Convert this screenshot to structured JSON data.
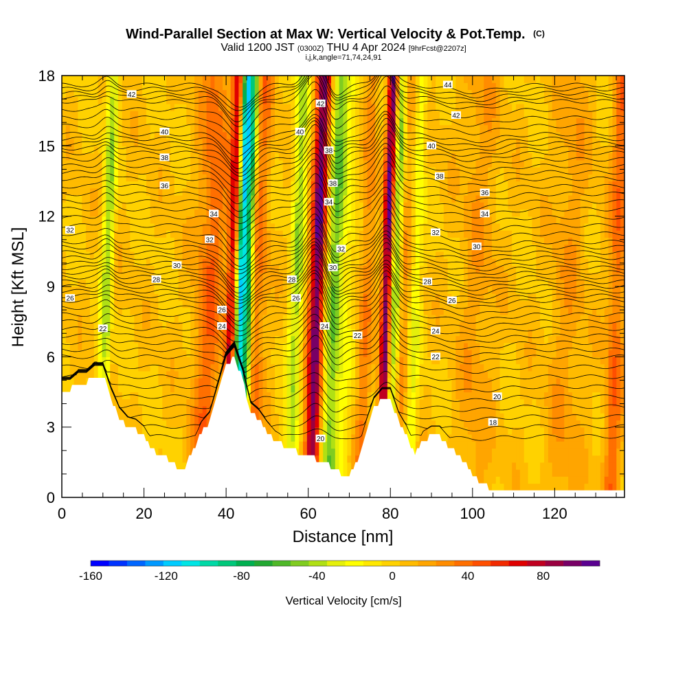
{
  "header": {
    "title": "Wind-Parallel Section at Max W: Vertical Velocity & Pot.Temp.",
    "title_mark": "(C)",
    "valid_prefix": "Valid 1200 JST",
    "valid_utc": "(0300Z)",
    "valid_date": "THU 4 Apr 2024",
    "forecast": "[9hrFcst@2207z]",
    "params": "i,j,k,angle=71,74,24,91"
  },
  "chart_data": {
    "type": "heatmap",
    "title": "Wind-Parallel Section at Max W: Vertical Velocity & Pot.Temp.",
    "xlabel": "Distance [nm]",
    "ylabel": "Height [Kft MSL]",
    "xlim": [
      0,
      137
    ],
    "ylim": [
      0,
      18
    ],
    "x_ticks": [
      0,
      20,
      40,
      60,
      80,
      100,
      120
    ],
    "y_ticks": [
      0,
      3,
      6,
      9,
      12,
      15,
      18
    ],
    "x_tick_labels": [
      "0",
      "20",
      "40",
      "60",
      "80",
      "100",
      "120"
    ],
    "y_tick_labels": [
      "0",
      "3",
      "6",
      "9",
      "12",
      "15",
      "18"
    ],
    "colorbar": {
      "label": "Vertical Velocity [cm/s]",
      "range": [
        -160,
        110
      ],
      "tick_values": [
        -160,
        -120,
        -80,
        -40,
        0,
        40,
        80
      ],
      "tick_labels": [
        "-160",
        "-120",
        "-80",
        "-40",
        "0",
        "40",
        "80"
      ],
      "colors": [
        "#0000ff",
        "#0033ff",
        "#0066ff",
        "#0099ff",
        "#00ccff",
        "#00e5e5",
        "#00d9a6",
        "#00c87a",
        "#00b050",
        "#22a832",
        "#4fb828",
        "#80cc20",
        "#b0e014",
        "#e5f00a",
        "#ffff00",
        "#ffe800",
        "#ffd200",
        "#ffbb00",
        "#ffa500",
        "#ff8c00",
        "#ff6f00",
        "#ff4f00",
        "#f22a00",
        "#e00000",
        "#c00020",
        "#9a0040",
        "#780066",
        "#5a0090"
      ]
    },
    "background_w": 5,
    "w_features": [
      {
        "x": 10.5,
        "w": -40,
        "sigma": 0.9
      },
      {
        "x": 11.5,
        "w": -15,
        "sigma": 0.6
      },
      {
        "x": 36,
        "w": 35,
        "sigma": 2.5
      },
      {
        "x": 41.5,
        "w": 80,
        "sigma": 1.0
      },
      {
        "x": 43.5,
        "w": -130,
        "sigma": 1.1
      },
      {
        "x": 45.5,
        "w": -60,
        "sigma": 0.7
      },
      {
        "x": 47.5,
        "w": 30,
        "sigma": 1.6
      },
      {
        "x": 57,
        "w": -45,
        "sigma": 1.2
      },
      {
        "x": 62,
        "w": 95,
        "sigma": 1.3
      },
      {
        "x": 66,
        "w": -55,
        "sigma": 1.4
      },
      {
        "x": 69,
        "w": -20,
        "sigma": 1.5
      },
      {
        "x": 74,
        "w": 25,
        "sigma": 1.2
      },
      {
        "x": 79,
        "w": 100,
        "sigma": 0.9
      },
      {
        "x": 81,
        "w": -60,
        "sigma": 1.0
      },
      {
        "x": 83,
        "w": 20,
        "sigma": 1.2
      },
      {
        "x": 86,
        "w": -30,
        "sigma": 1.0
      },
      {
        "x": 101,
        "w": 15,
        "sigma": 3.0
      },
      {
        "x": 123,
        "w": 15,
        "sigma": 3.0
      },
      {
        "x": 135,
        "w": 35,
        "sigma": 1.5
      }
    ],
    "terrain": {
      "x": [
        0,
        2,
        4,
        6,
        8,
        10,
        12,
        14,
        16,
        18,
        20,
        22,
        24,
        26,
        28,
        30,
        32,
        34,
        36,
        38,
        40,
        42,
        44,
        46,
        48,
        50,
        52,
        54,
        56,
        58,
        60,
        62,
        64,
        66,
        68,
        70,
        72,
        74,
        76,
        78,
        80,
        82,
        84,
        86,
        88,
        90,
        92,
        94,
        96,
        98,
        100,
        102,
        104,
        106,
        110,
        120,
        130,
        137
      ],
      "h": [
        4.6,
        4.6,
        4.9,
        4.9,
        5.2,
        5.2,
        4.2,
        3.4,
        3.0,
        2.9,
        2.6,
        2.0,
        1.8,
        1.6,
        1.3,
        1.3,
        2.0,
        2.8,
        3.2,
        4.4,
        5.6,
        6.0,
        5.0,
        3.6,
        3.3,
        2.8,
        2.4,
        2.2,
        2.0,
        1.9,
        1.8,
        1.6,
        1.4,
        1.3,
        1.0,
        1.0,
        1.6,
        2.8,
        3.8,
        4.2,
        4.2,
        3.2,
        2.6,
        1.8,
        2.4,
        2.6,
        2.6,
        2.2,
        1.9,
        1.5,
        1.0,
        0.6,
        0.4,
        0.3,
        0.3,
        0.3,
        0.3,
        0.4
      ]
    },
    "theta_contours": {
      "base_values": [
        18,
        20,
        22,
        24,
        26,
        28,
        30,
        32,
        34,
        36,
        38,
        40,
        42,
        44
      ],
      "base_heights": [
        2.6,
        4.3,
        6.0,
        7.2,
        8.4,
        9.2,
        10.0,
        10.9,
        12.3,
        13.6,
        14.7,
        15.5,
        16.9,
        17.6
      ],
      "spacing": 0.25,
      "undulation": [
        {
          "x": 43,
          "amp": -1.0,
          "sigma": 3.0
        },
        {
          "x": 62,
          "amp": 1.2,
          "sigma": 2.5
        },
        {
          "x": 66,
          "amp": -0.6,
          "sigma": 2.0
        },
        {
          "x": 79,
          "amp": 1.0,
          "sigma": 2.0
        },
        {
          "x": 11,
          "amp": 0.3,
          "sigma": 1.5
        },
        {
          "x": 100,
          "amp": -0.3,
          "sigma": 6.0
        }
      ]
    },
    "theta_labels": [
      {
        "x": 17,
        "y": 17.2,
        "text": "42"
      },
      {
        "x": 25,
        "y": 15.6,
        "text": "40"
      },
      {
        "x": 25,
        "y": 14.5,
        "text": "38"
      },
      {
        "x": 25,
        "y": 13.3,
        "text": "36"
      },
      {
        "x": 37,
        "y": 12.1,
        "text": "34"
      },
      {
        "x": 36,
        "y": 11.0,
        "text": "32"
      },
      {
        "x": 28,
        "y": 9.9,
        "text": "30"
      },
      {
        "x": 23,
        "y": 9.3,
        "text": "28"
      },
      {
        "x": 2,
        "y": 11.4,
        "text": "32"
      },
      {
        "x": 2,
        "y": 8.5,
        "text": "26"
      },
      {
        "x": 10,
        "y": 7.2,
        "text": "22"
      },
      {
        "x": 39,
        "y": 8.0,
        "text": "26"
      },
      {
        "x": 39,
        "y": 7.3,
        "text": "24"
      },
      {
        "x": 63,
        "y": 16.8,
        "text": "42"
      },
      {
        "x": 58,
        "y": 15.6,
        "text": "40"
      },
      {
        "x": 65,
        "y": 14.8,
        "text": "38"
      },
      {
        "x": 66,
        "y": 13.4,
        "text": "38"
      },
      {
        "x": 65,
        "y": 12.6,
        "text": "34"
      },
      {
        "x": 68,
        "y": 10.6,
        "text": "32"
      },
      {
        "x": 66,
        "y": 9.8,
        "text": "30"
      },
      {
        "x": 56,
        "y": 9.3,
        "text": "28"
      },
      {
        "x": 57,
        "y": 8.5,
        "text": "26"
      },
      {
        "x": 64,
        "y": 7.3,
        "text": "24"
      },
      {
        "x": 72,
        "y": 6.9,
        "text": "22"
      },
      {
        "x": 63,
        "y": 2.5,
        "text": "20"
      },
      {
        "x": 94,
        "y": 17.6,
        "text": "44"
      },
      {
        "x": 96,
        "y": 16.3,
        "text": "42"
      },
      {
        "x": 90,
        "y": 15.0,
        "text": "40"
      },
      {
        "x": 92,
        "y": 13.7,
        "text": "38"
      },
      {
        "x": 103,
        "y": 13.0,
        "text": "36"
      },
      {
        "x": 103,
        "y": 12.1,
        "text": "34"
      },
      {
        "x": 91,
        "y": 11.3,
        "text": "32"
      },
      {
        "x": 101,
        "y": 10.7,
        "text": "30"
      },
      {
        "x": 89,
        "y": 9.2,
        "text": "28"
      },
      {
        "x": 95,
        "y": 8.4,
        "text": "26"
      },
      {
        "x": 91,
        "y": 7.1,
        "text": "24"
      },
      {
        "x": 91,
        "y": 6.0,
        "text": "22"
      },
      {
        "x": 106,
        "y": 4.3,
        "text": "20"
      },
      {
        "x": 105,
        "y": 3.2,
        "text": "18"
      }
    ]
  }
}
